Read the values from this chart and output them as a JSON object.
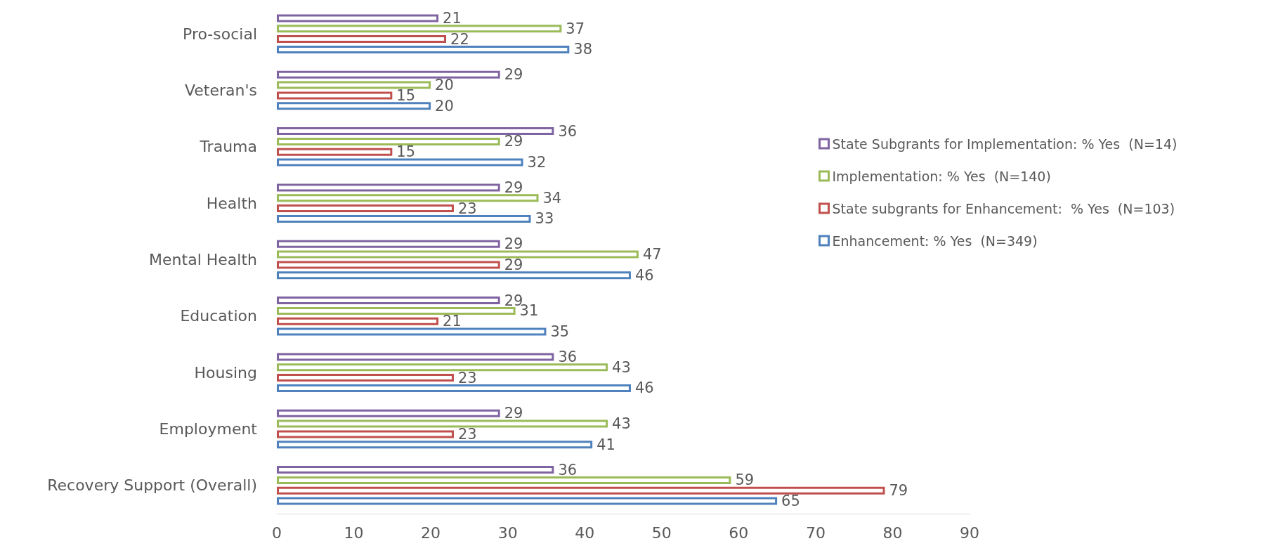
{
  "chart_data": {
    "type": "bar",
    "orientation": "horizontal",
    "categories": [
      "Pro-social",
      "Veteran's",
      "Trauma",
      "Health",
      "Mental Health",
      "Education",
      "Housing",
      "Employment",
      "Recovery Support (Overall)"
    ],
    "series": [
      {
        "name": "State Subgrants for Implementation: % Yes  (N=14)",
        "color": "#8064a2",
        "values": [
          21,
          29,
          36,
          29,
          29,
          29,
          36,
          29,
          36
        ]
      },
      {
        "name": "Implementation: % Yes  (N=140)",
        "color": "#9bbb59",
        "values": [
          37,
          20,
          29,
          34,
          47,
          31,
          43,
          43,
          59
        ]
      },
      {
        "name": "State subgrants for Enhancement:  % Yes  (N=103)",
        "color": "#c0504d",
        "values": [
          22,
          15,
          15,
          23,
          29,
          21,
          23,
          23,
          79
        ]
      },
      {
        "name": "Enhancement: % Yes  (N=349)",
        "color": "#4f81bd",
        "values": [
          38,
          20,
          32,
          33,
          46,
          35,
          46,
          41,
          65
        ]
      }
    ],
    "xlim": [
      0,
      90
    ],
    "xticks": [
      0,
      10,
      20,
      30,
      40,
      50,
      60,
      70,
      80,
      90
    ],
    "data_labels": true,
    "grid": false,
    "legend": "right"
  }
}
